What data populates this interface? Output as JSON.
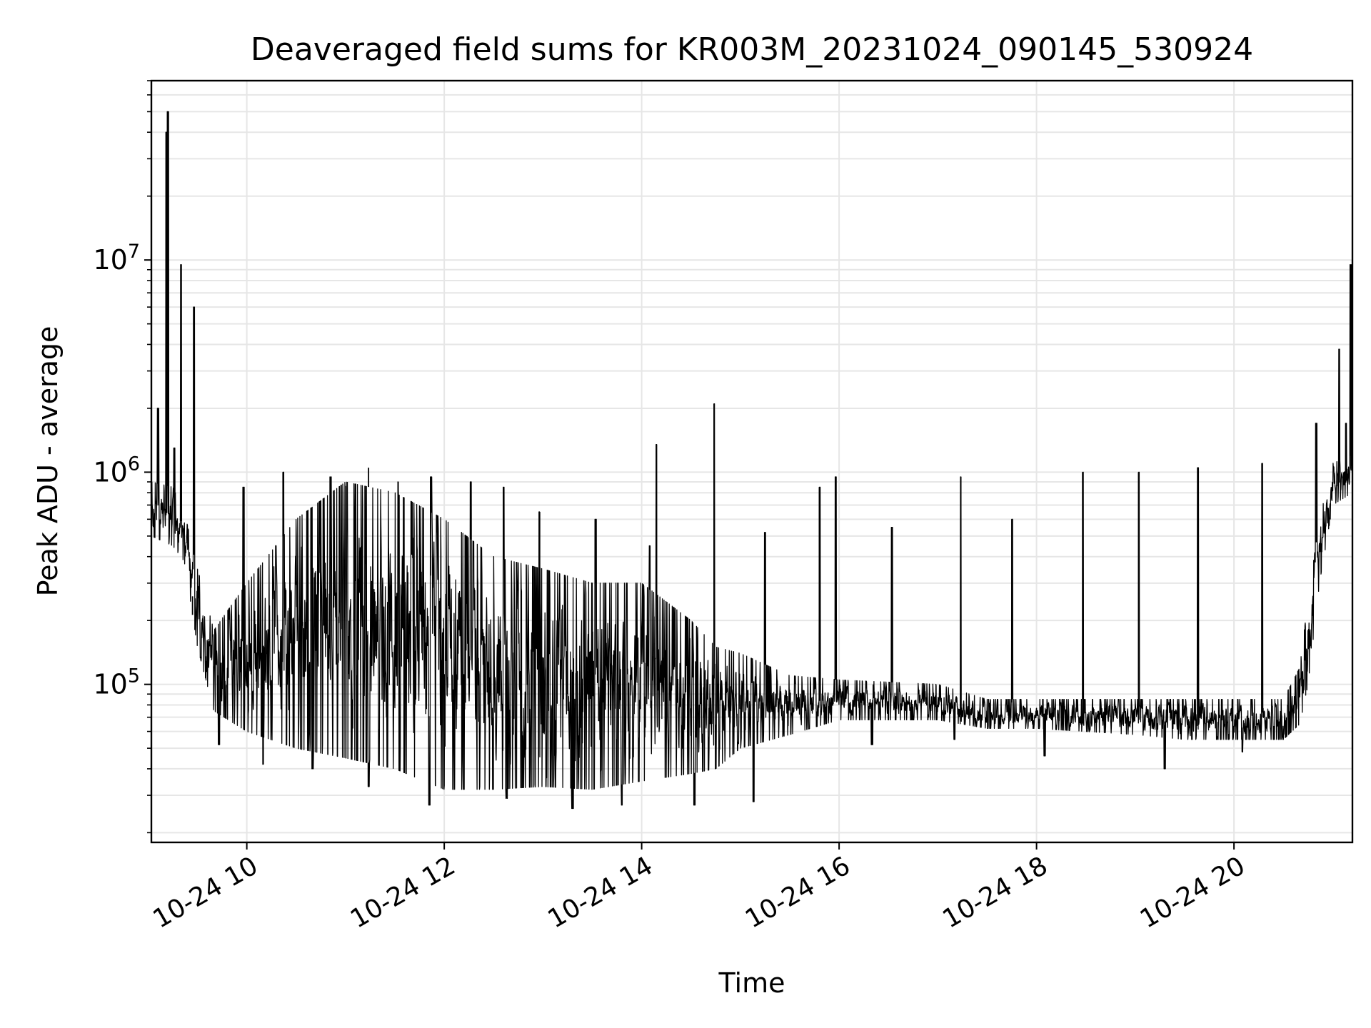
{
  "chart_data": {
    "type": "line",
    "title": "Deaveraged field sums for KR003M_20231024_090145_530924",
    "xlabel": "Time",
    "ylabel": "Peak ADU - average",
    "yscale": "log",
    "grid": true,
    "xlim": [
      "2023-10-24 09:02",
      "2023-10-24 21:12"
    ],
    "ylim": [
      18000,
      70000000
    ],
    "xticks": [
      {
        "value": "2023-10-24 10:00",
        "label": "10-24 10"
      },
      {
        "value": "2023-10-24 12:00",
        "label": "10-24 12"
      },
      {
        "value": "2023-10-24 14:00",
        "label": "10-24 14"
      },
      {
        "value": "2023-10-24 16:00",
        "label": "10-24 16"
      },
      {
        "value": "2023-10-24 18:00",
        "label": "10-24 18"
      },
      {
        "value": "2023-10-24 20:00",
        "label": "10-24 20"
      }
    ],
    "yticks": [
      {
        "value": 100000,
        "base": "10",
        "exp": "5"
      },
      {
        "value": 1000000,
        "base": "10",
        "exp": "6"
      },
      {
        "value": 10000000,
        "base": "10",
        "exp": "7"
      }
    ],
    "series": [
      {
        "color": "#000000",
        "baseline": [
          {
            "t": "2023-10-24 09:02",
            "lower": 500000,
            "upper": 900000
          },
          {
            "t": "2023-10-24 09:15",
            "lower": 450000,
            "upper": 850000
          },
          {
            "t": "2023-10-24 09:22",
            "lower": 380000,
            "upper": 650000
          },
          {
            "t": "2023-10-24 09:30",
            "lower": 150000,
            "upper": 350000
          },
          {
            "t": "2023-10-24 09:40",
            "lower": 75000,
            "upper": 180000
          },
          {
            "t": "2023-10-24 10:00",
            "lower": 60000,
            "upper": 300000
          },
          {
            "t": "2023-10-24 10:30",
            "lower": 50000,
            "upper": 600000
          },
          {
            "t": "2023-10-24 11:00",
            "lower": 45000,
            "upper": 900000
          },
          {
            "t": "2023-10-24 11:30",
            "lower": 40000,
            "upper": 800000
          },
          {
            "t": "2023-10-24 12:00",
            "lower": 32000,
            "upper": 600000
          },
          {
            "t": "2023-10-24 12:30",
            "lower": 32000,
            "upper": 400000
          },
          {
            "t": "2023-10-24 13:00",
            "lower": 33000,
            "upper": 350000
          },
          {
            "t": "2023-10-24 13:30",
            "lower": 32000,
            "upper": 300000
          },
          {
            "t": "2023-10-24 14:00",
            "lower": 35000,
            "upper": 300000
          },
          {
            "t": "2023-10-24 14:30",
            "lower": 38000,
            "upper": 200000
          },
          {
            "t": "2023-10-24 14:45",
            "lower": 40000,
            "upper": 150000
          },
          {
            "t": "2023-10-24 15:00",
            "lower": 50000,
            "upper": 140000
          },
          {
            "t": "2023-10-24 15:30",
            "lower": 58000,
            "upper": 110000
          },
          {
            "t": "2023-10-24 16:00",
            "lower": 68000,
            "upper": 105000
          },
          {
            "t": "2023-10-24 17:00",
            "lower": 68000,
            "upper": 100000
          },
          {
            "t": "2023-10-24 17:30",
            "lower": 62000,
            "upper": 85000
          },
          {
            "t": "2023-10-24 18:00",
            "lower": 62000,
            "upper": 85000
          },
          {
            "t": "2023-10-24 19:00",
            "lower": 58000,
            "upper": 85000
          },
          {
            "t": "2023-10-24 19:30",
            "lower": 55000,
            "upper": 85000
          },
          {
            "t": "2023-10-24 20:00",
            "lower": 55000,
            "upper": 85000
          },
          {
            "t": "2023-10-24 20:30",
            "lower": 55000,
            "upper": 85000
          },
          {
            "t": "2023-10-24 20:40",
            "lower": 65000,
            "upper": 120000
          },
          {
            "t": "2023-10-24 20:45",
            "lower": 100000,
            "upper": 250000
          },
          {
            "t": "2023-10-24 20:52",
            "lower": 300000,
            "upper": 600000
          },
          {
            "t": "2023-10-24 21:00",
            "lower": 700000,
            "upper": 1100000
          },
          {
            "t": "2023-10-24 21:12",
            "lower": 800000,
            "upper": 1200000
          }
        ],
        "spikes": [
          {
            "t": "2023-10-24 09:06",
            "value": 2000000
          },
          {
            "t": "2023-10-24 09:11",
            "value": 40000000
          },
          {
            "t": "2023-10-24 09:12",
            "value": 50000000
          },
          {
            "t": "2023-10-24 09:16",
            "value": 1300000
          },
          {
            "t": "2023-10-24 09:20",
            "value": 9500000
          },
          {
            "t": "2023-10-24 09:28",
            "value": 6000000
          },
          {
            "t": "2023-10-24 09:58",
            "value": 850000
          },
          {
            "t": "2023-10-24 10:22",
            "value": 1000000
          },
          {
            "t": "2023-10-24 10:51",
            "value": 950000
          },
          {
            "t": "2023-10-24 11:14",
            "value": 1050000
          },
          {
            "t": "2023-10-24 11:32",
            "value": 900000
          },
          {
            "t": "2023-10-24 11:52",
            "value": 950000
          },
          {
            "t": "2023-10-24 12:16",
            "value": 900000
          },
          {
            "t": "2023-10-24 12:36",
            "value": 850000
          },
          {
            "t": "2023-10-24 12:58",
            "value": 650000
          },
          {
            "t": "2023-10-24 13:32",
            "value": 600000
          },
          {
            "t": "2023-10-24 14:05",
            "value": 450000
          },
          {
            "t": "2023-10-24 14:09",
            "value": 1350000
          },
          {
            "t": "2023-10-24 14:44",
            "value": 2100000
          },
          {
            "t": "2023-10-24 15:15",
            "value": 520000
          },
          {
            "t": "2023-10-24 15:48",
            "value": 850000
          },
          {
            "t": "2023-10-24 15:58",
            "value": 950000
          },
          {
            "t": "2023-10-24 16:32",
            "value": 550000
          },
          {
            "t": "2023-10-24 17:14",
            "value": 950000
          },
          {
            "t": "2023-10-24 17:45",
            "value": 600000
          },
          {
            "t": "2023-10-24 18:28",
            "value": 1000000
          },
          {
            "t": "2023-10-24 19:02",
            "value": 1000000
          },
          {
            "t": "2023-10-24 19:38",
            "value": 1050000
          },
          {
            "t": "2023-10-24 20:17",
            "value": 1100000
          },
          {
            "t": "2023-10-24 20:50",
            "value": 1700000
          },
          {
            "t": "2023-10-24 21:04",
            "value": 3800000
          },
          {
            "t": "2023-10-24 21:08",
            "value": 1700000
          },
          {
            "t": "2023-10-24 21:11",
            "value": 9500000
          }
        ],
        "dips": [
          {
            "t": "2023-10-24 09:27",
            "value": 260000
          },
          {
            "t": "2023-10-24 09:43",
            "value": 52000
          },
          {
            "t": "2023-10-24 10:10",
            "value": 42000
          },
          {
            "t": "2023-10-24 10:40",
            "value": 40000
          },
          {
            "t": "2023-10-24 11:14",
            "value": 33000
          },
          {
            "t": "2023-10-24 11:51",
            "value": 27000
          },
          {
            "t": "2023-10-24 12:38",
            "value": 29000
          },
          {
            "t": "2023-10-24 13:18",
            "value": 26000
          },
          {
            "t": "2023-10-24 13:48",
            "value": 27000
          },
          {
            "t": "2023-10-24 14:32",
            "value": 27000
          },
          {
            "t": "2023-10-24 15:08",
            "value": 28000
          },
          {
            "t": "2023-10-24 16:20",
            "value": 52000
          },
          {
            "t": "2023-10-24 17:10",
            "value": 55000
          },
          {
            "t": "2023-10-24 18:05",
            "value": 46000
          },
          {
            "t": "2023-10-24 19:18",
            "value": 40000
          },
          {
            "t": "2023-10-24 20:05",
            "value": 48000
          }
        ]
      }
    ]
  }
}
